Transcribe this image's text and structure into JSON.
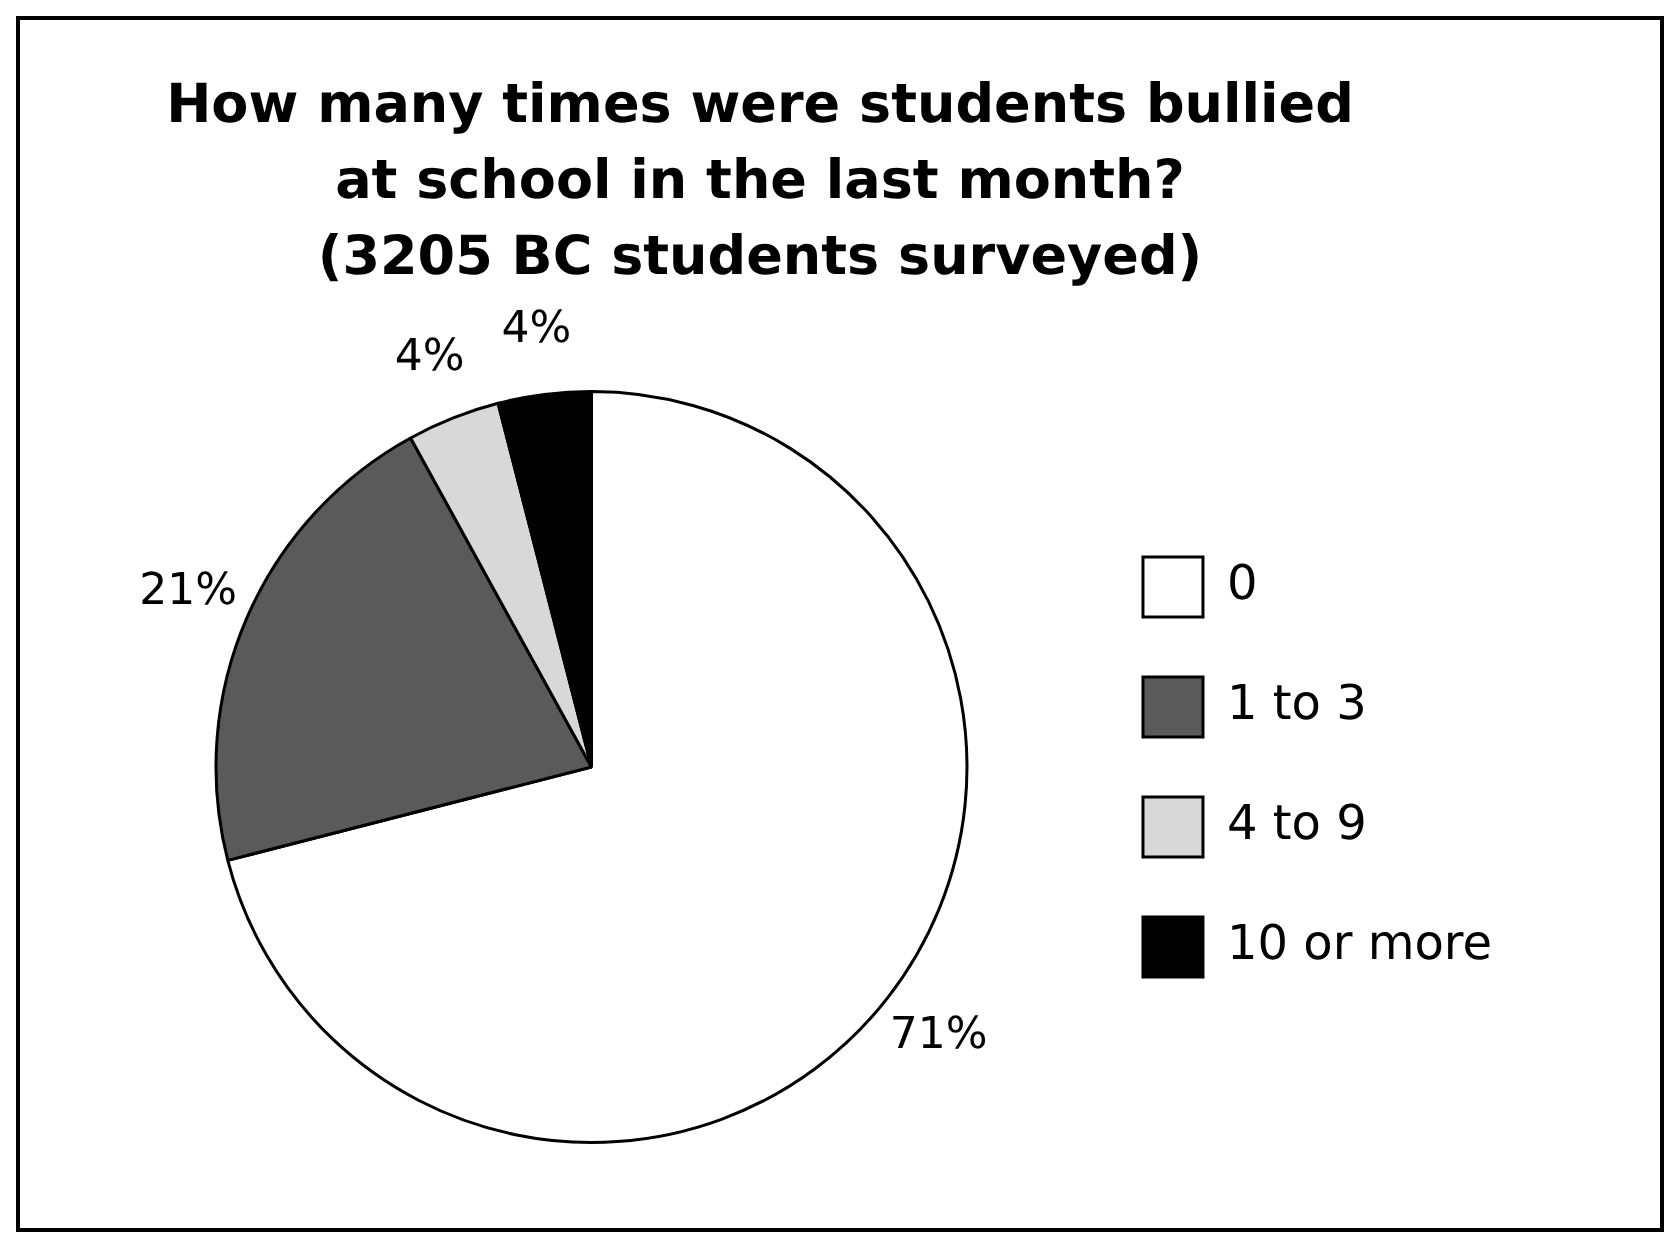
{
  "chart_data": {
    "type": "pie",
    "title": "How many times were students bullied\nat school in the last month?\n(3205 BC students surveyed)",
    "categories": [
      "0",
      "1 to 3",
      "4 to 9",
      "10 or more"
    ],
    "values": [
      71,
      21,
      4,
      4
    ],
    "colors": [
      "#ffffff",
      "#5a5a5a",
      "#d8d8d8",
      "#000000"
    ],
    "value_labels": [
      "71%",
      "21%",
      "4%",
      "4%"
    ],
    "legend": "right"
  }
}
